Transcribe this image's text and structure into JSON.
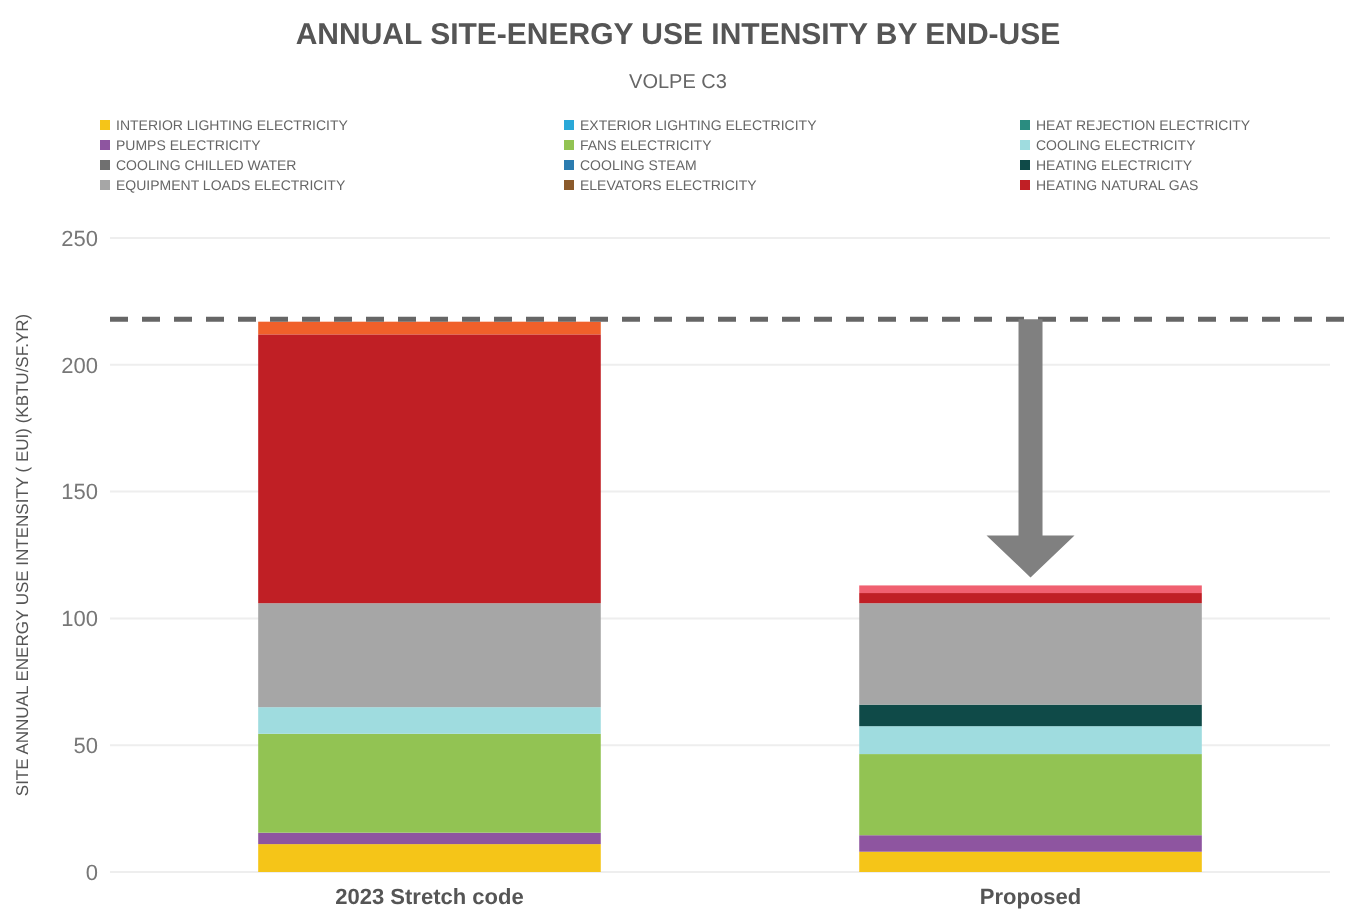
{
  "chart_data": {
    "type": "bar",
    "stacked": true,
    "title": "ANNUAL SITE-ENERGY USE INTENSITY BY END-USE",
    "subtitle": "VOLPE C3",
    "ylabel": "SITE ANNUAL ENERGY USE INTENSITY ( EUI) (KBTU/SF.YR)",
    "categories": [
      "2023 Stretch code",
      "Proposed"
    ],
    "ylim": [
      0,
      250
    ],
    "yticks": [
      0,
      50,
      100,
      150,
      200,
      250
    ],
    "grid": "y",
    "legend": "top",
    "series": [
      {
        "name": "INTERIOR LIGHTING ELECTRICITY",
        "color": "#f5c518",
        "values": [
          11,
          8
        ]
      },
      {
        "name": "EXTERIOR LIGHTING ELECTRICITY",
        "color": "#2aa8d8",
        "values": [
          0,
          0
        ]
      },
      {
        "name": "HEAT REJECTION ELECTRICITY",
        "color": "#2a8c80",
        "values": [
          0,
          0
        ]
      },
      {
        "name": "PUMPS ELECTRICITY",
        "color": "#8e55a0",
        "values": [
          4.5,
          6.5
        ]
      },
      {
        "name": "FANS ELECTRICITY",
        "color": "#92c353",
        "values": [
          39,
          32
        ]
      },
      {
        "name": "COOLING ELECTRICITY",
        "color": "#9fdcdf",
        "values": [
          10.5,
          11
        ]
      },
      {
        "name": "COOLING CHILLED WATER",
        "color": "#707070",
        "values": [
          0,
          0
        ]
      },
      {
        "name": "COOLING STEAM",
        "color": "#2b7cb0",
        "values": [
          0,
          0
        ]
      },
      {
        "name": "HEATING ELECTRICITY",
        "color": "#0f4a48",
        "values": [
          0,
          8.5
        ]
      },
      {
        "name": "EQUIPMENT LOADS ELECTRICITY",
        "color": "#a6a6a6",
        "values": [
          41,
          40
        ]
      },
      {
        "name": "ELEVATORS ELECTRICITY",
        "color": "#8b5a2b",
        "values": [
          0,
          0
        ]
      },
      {
        "name": "HEATING NATURAL GAS",
        "color": "#c01f25",
        "values": [
          106,
          4
        ]
      },
      {
        "colors": [
          "#f0602a",
          "#f06070"
        ],
        "values": [
          5,
          3
        ]
      }
    ],
    "ref_lines": [
      {
        "axis": "y",
        "value": 218,
        "color": "#666666",
        "line_style": "dashed"
      }
    ]
  }
}
